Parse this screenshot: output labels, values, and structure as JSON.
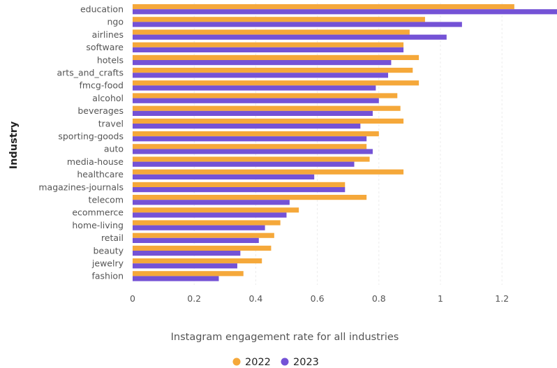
{
  "chart_data": {
    "type": "bar",
    "orientation": "horizontal",
    "categories": [
      "education",
      "ngo",
      "airlines",
      "software",
      "hotels",
      "arts_and_crafts",
      "fmcg-food",
      "alcohol",
      "beverages",
      "travel",
      "sporting-goods",
      "auto",
      "media-house",
      "healthcare",
      "magazines-journals",
      "telecom",
      "ecommerce",
      "home-living",
      "retail",
      "beauty",
      "jewelry",
      "fashion"
    ],
    "series": [
      {
        "name": "2022",
        "color": "#f5a83a",
        "values": [
          1.24,
          0.95,
          0.9,
          0.88,
          0.93,
          0.91,
          0.93,
          0.86,
          0.87,
          0.88,
          0.8,
          0.76,
          0.77,
          0.88,
          0.69,
          0.76,
          0.54,
          0.48,
          0.46,
          0.45,
          0.42,
          0.36
        ]
      },
      {
        "name": "2023",
        "color": "#7452d6",
        "values": [
          1.38,
          1.07,
          1.02,
          0.88,
          0.84,
          0.83,
          0.79,
          0.8,
          0.78,
          0.74,
          0.76,
          0.78,
          0.72,
          0.59,
          0.69,
          0.51,
          0.5,
          0.43,
          0.41,
          0.35,
          0.34,
          0.28
        ]
      }
    ],
    "xticks": [
      "0",
      "0.2",
      "0.4",
      "0.6",
      "0.8",
      "1",
      "1.2"
    ],
    "xlim": [
      0,
      1.38
    ],
    "xlabel": "Instagram engagement rate for all industries",
    "ylabel": "Industry",
    "grid": true,
    "legend_position": "bottom-center"
  }
}
